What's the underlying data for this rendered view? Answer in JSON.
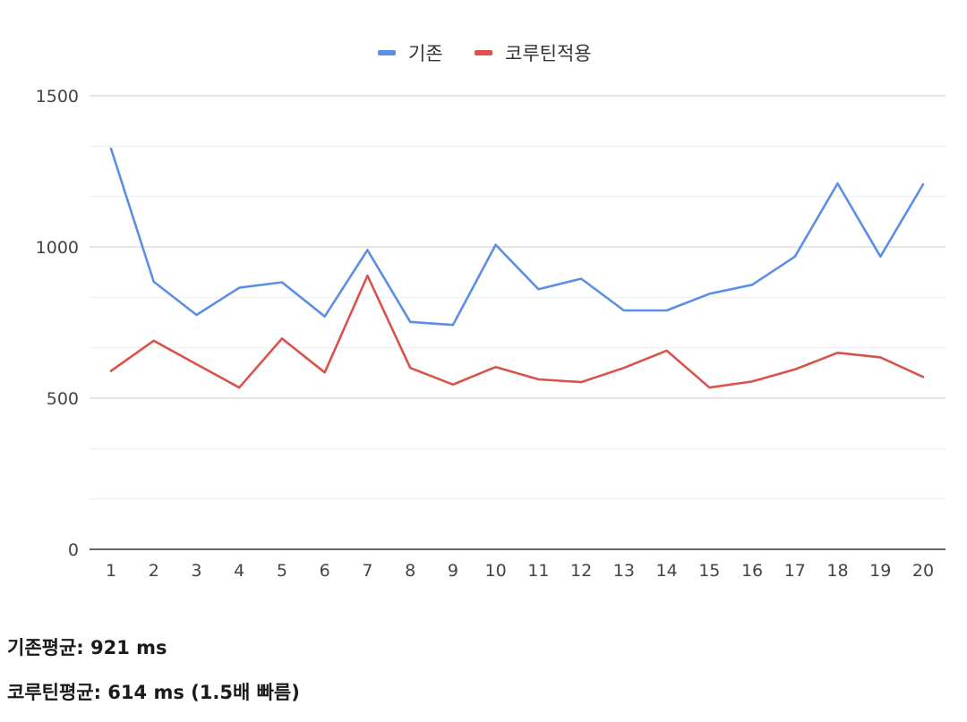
{
  "chart_data": {
    "type": "line",
    "title": "",
    "xlabel": "",
    "ylabel": "",
    "categories": [
      "1",
      "2",
      "3",
      "4",
      "5",
      "6",
      "7",
      "8",
      "9",
      "10",
      "11",
      "12",
      "13",
      "14",
      "15",
      "16",
      "17",
      "18",
      "19",
      "20"
    ],
    "ylim": [
      0,
      1500
    ],
    "yticks": [
      0,
      500,
      1000,
      1500
    ],
    "minor_gridlines": [
      166.7,
      333.3,
      666.7,
      833.3,
      1166.7,
      1333.3
    ],
    "grid": true,
    "legend_position": "top-center",
    "series": [
      {
        "name": "기존",
        "color": "#5b8ee6",
        "values": [
          1325,
          885,
          775,
          865,
          883,
          770,
          990,
          752,
          742,
          1007,
          860,
          895,
          790,
          790,
          845,
          875,
          968,
          1210,
          968,
          1207
        ]
      },
      {
        "name": "코루틴적용",
        "color": "#d9534a",
        "values": [
          590,
          690,
          612,
          535,
          697,
          585,
          905,
          600,
          545,
          603,
          562,
          553,
          600,
          657,
          535,
          555,
          595,
          650,
          635,
          570
        ]
      }
    ]
  },
  "summary": {
    "baseline_average": "기존평균: 921 ms",
    "coroutine_average": "코루틴평균: 614 ms (1.5배 빠름)"
  }
}
